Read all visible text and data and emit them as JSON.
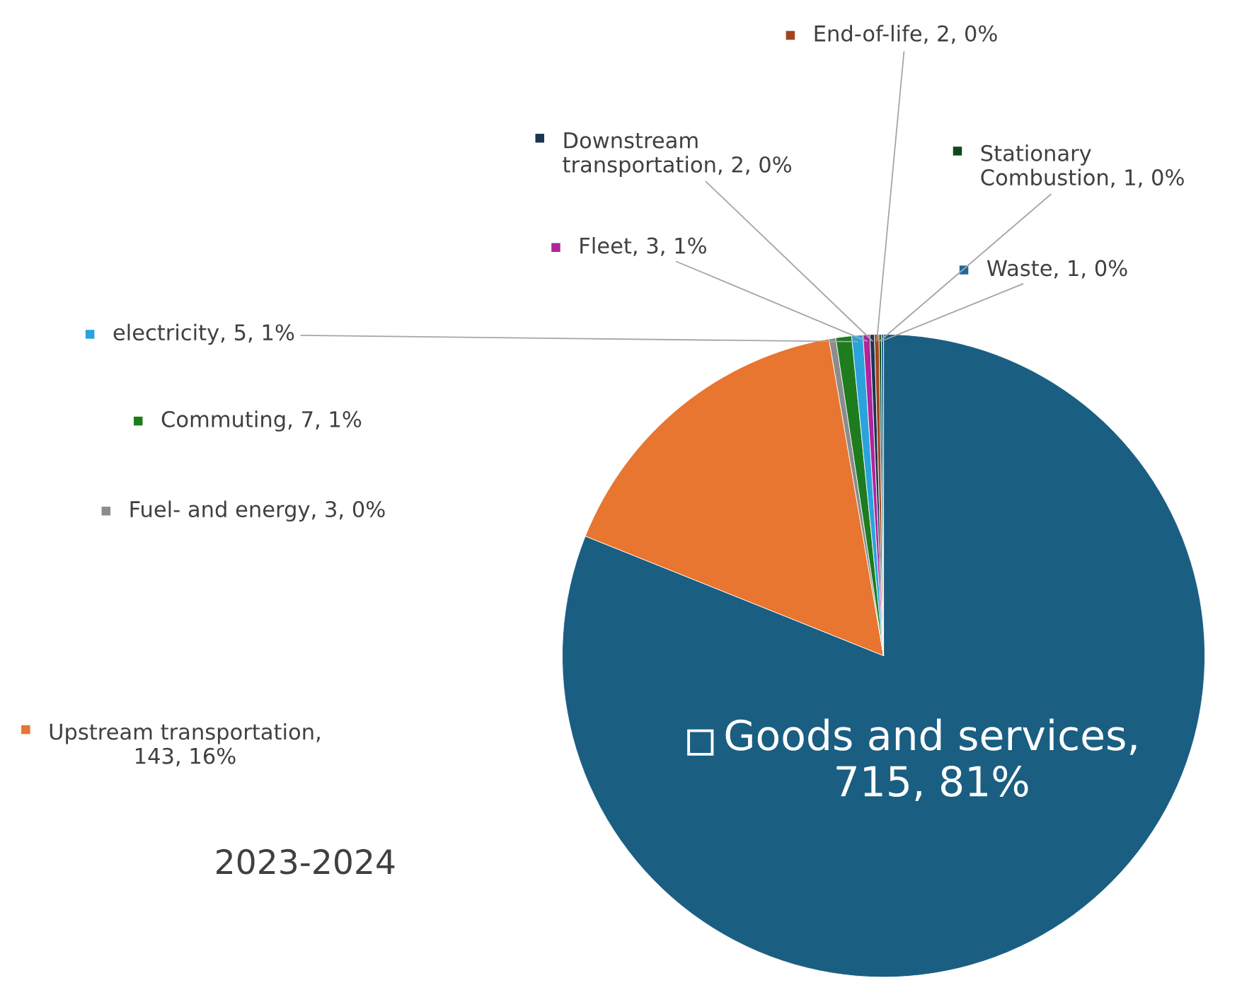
{
  "chart_data": {
    "type": "pie",
    "categories": [
      "Goods and services",
      "Upstream transportation",
      "Fuel- and energy",
      "Commuting",
      "electricity",
      "Fleet",
      "Downstream transportation",
      "End-of-life",
      "Stationary Combustion",
      "Waste"
    ],
    "values": [
      715,
      143,
      3,
      7,
      5,
      3,
      2,
      2,
      1,
      1
    ],
    "colors": [
      "#1a5e82",
      "#e87530",
      "#8c8c8c",
      "#1e7b1e",
      "#2aa3dd",
      "#b0259b",
      "#1c3553",
      "#a0461e",
      "#0e4a1e",
      "#1f6a94"
    ],
    "value_labels": [
      ",\n715, 81%",
      ",\n143, 16%",
      ", 3, 0%",
      ", 7, 1%",
      ", 5, 1%",
      ", 3, 1%",
      ", 2, 0%",
      ", 2, 0%",
      ", 1, 0%",
      ", 1, 0%"
    ],
    "annotations": [
      "2023-2024"
    ],
    "legend": "top left"
  }
}
